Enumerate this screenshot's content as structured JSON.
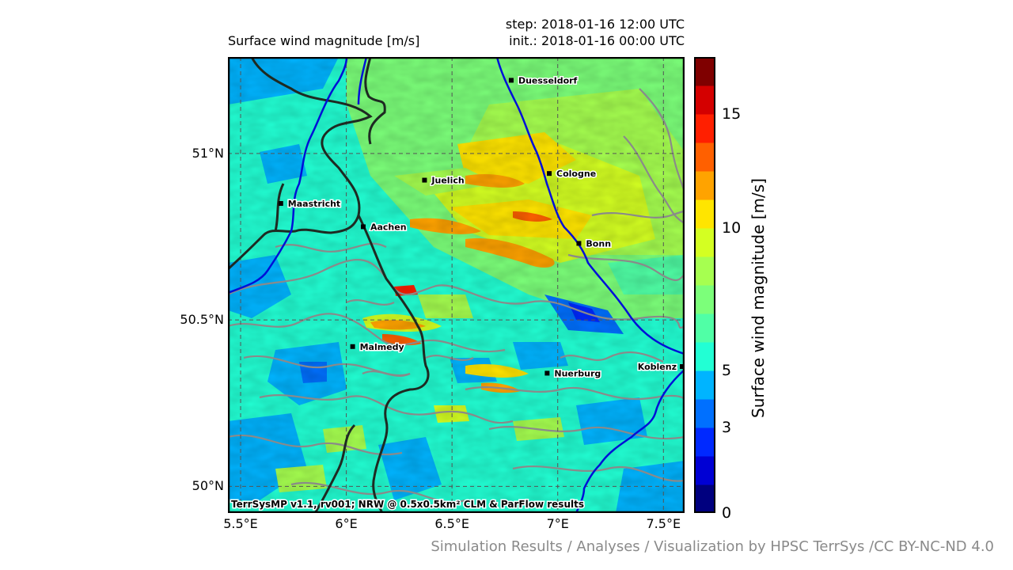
{
  "map": {
    "title": "Surface wind magnitude [m/s]",
    "step": "step: 2018-01-16 12:00 UTC",
    "init": "init.: 2018-01-16 00:00 UTC",
    "credit": "TerrSysMP v1.1, rv001; NRW @ 0.5x0.5km² CLM & ParFlow results",
    "lon_ticks": [
      "5.5°E",
      "6°E",
      "6.5°E",
      "7°E",
      "7.5°E"
    ],
    "lat_ticks": [
      "51°N",
      "50.5°N",
      "50°N"
    ],
    "lon_values": [
      5.5,
      6.0,
      6.5,
      7.0,
      7.5
    ],
    "lat_values": [
      51.0,
      50.5,
      50.0
    ],
    "lon_range": [
      5.44,
      7.6
    ],
    "lat_range": [
      49.92,
      51.29
    ],
    "cities": [
      {
        "name": "Duesseldorf",
        "lon": 6.78,
        "lat": 51.22
      },
      {
        "name": "Juelich",
        "lon": 6.37,
        "lat": 50.92
      },
      {
        "name": "Cologne",
        "lon": 6.96,
        "lat": 50.94
      },
      {
        "name": "Maastricht",
        "lon": 5.69,
        "lat": 50.85
      },
      {
        "name": "Aachen",
        "lon": 6.08,
        "lat": 50.78
      },
      {
        "name": "Bonn",
        "lon": 7.1,
        "lat": 50.73
      },
      {
        "name": "Malmedy",
        "lon": 6.03,
        "lat": 50.42
      },
      {
        "name": "Nuerburg",
        "lon": 6.95,
        "lat": 50.34
      },
      {
        "name": "Koblenz",
        "lon": 7.59,
        "lat": 50.36
      }
    ]
  },
  "colorbar": {
    "label": "Surface wind magnitude [m/s]",
    "tick_labels": [
      "15",
      "10",
      "5",
      "3",
      "0"
    ],
    "tick_values": [
      15,
      10,
      5,
      3,
      0
    ],
    "levels": [
      0,
      1,
      2,
      3,
      4,
      5,
      6,
      7,
      8,
      9,
      10,
      11,
      12,
      13,
      15
    ],
    "colors": [
      "#00007f",
      "#0000d4",
      "#0029ff",
      "#0070ff",
      "#00b4ff",
      "#22ffd4",
      "#50ffa6",
      "#7cff7a",
      "#a6ff50",
      "#d4ff22",
      "#ffe500",
      "#ffa300",
      "#ff6000",
      "#ff1f00",
      "#d40000",
      "#7f0000"
    ]
  },
  "footer": "Simulation Results / Analyses / Visualization by HPSC TerrSys /CC BY-NC-ND 4.0",
  "colors": {
    "river": "#0010d8",
    "border": "#1e2a22",
    "contour": "#8a8a8a",
    "gridline": "#555555"
  }
}
